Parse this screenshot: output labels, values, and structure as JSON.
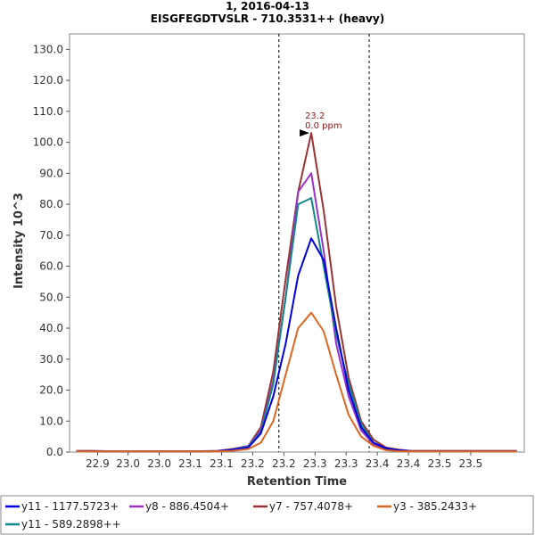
{
  "chart_data": {
    "type": "line",
    "title": "1, 2016-04-13",
    "subtitle": "EISGFEGDTVSLR - 710.3531++ (heavy)",
    "xlabel": "Retention Time",
    "ylabel": "Intensity 10^3",
    "xlim": [
      22.83,
      23.56
    ],
    "ylim": [
      0,
      135
    ],
    "x_ticks": [
      "22.9",
      "23.0",
      "23.0",
      "23.1",
      "23.1",
      "23.2",
      "23.2",
      "23.3",
      "23.3",
      "23.4",
      "23.4",
      "23.5",
      "23.5"
    ],
    "x_tick_values": [
      22.875,
      22.924,
      22.974,
      23.024,
      23.074,
      23.124,
      23.174,
      23.224,
      23.274,
      23.324,
      23.374,
      23.424,
      23.474
    ],
    "y_ticks": [
      "0.0",
      "10.0",
      "20.0",
      "30.0",
      "40.0",
      "50.0",
      "60.0",
      "70.0",
      "80.0",
      "90.0",
      "100.0",
      "110.0",
      "120.0",
      "130.0"
    ],
    "y_tick_values": [
      0,
      10,
      20,
      30,
      40,
      50,
      60,
      70,
      80,
      90,
      100,
      110,
      120,
      130
    ],
    "boundaries": [
      23.166,
      23.311
    ],
    "annotation": {
      "x": 23.218,
      "y": 103,
      "lines": [
        "23.2",
        "0.0 ppm"
      ],
      "color": "#8b1a1a"
    },
    "x": [
      22.841,
      22.866,
      22.891,
      22.917,
      22.942,
      22.967,
      22.992,
      23.017,
      23.042,
      23.067,
      23.092,
      23.117,
      23.137,
      23.157,
      23.177,
      23.197,
      23.218,
      23.238,
      23.258,
      23.278,
      23.298,
      23.318,
      23.338,
      23.358,
      23.378,
      23.398,
      23.423,
      23.448,
      23.473,
      23.498,
      23.523,
      23.548
    ],
    "series": [
      {
        "name": "y11 - 1177.5723+",
        "color": "#0000dd",
        "values": [
          0.3,
          0.3,
          0.2,
          0.2,
          0.2,
          0.2,
          0.2,
          0.2,
          0.2,
          0.3,
          0.8,
          1.5,
          6,
          18,
          35,
          57,
          69,
          62,
          40,
          20,
          8,
          3,
          1.2,
          0.6,
          0.3,
          0.3,
          0.3,
          0.3,
          0.3,
          0.3,
          0.3,
          0.3
        ]
      },
      {
        "name": "y8 - 886.4504+",
        "color": "#9933cc",
        "values": [
          0.3,
          0.3,
          0.2,
          0.2,
          0.2,
          0.2,
          0.2,
          0.2,
          0.2,
          0.3,
          0.9,
          2,
          7,
          23,
          50,
          84,
          90,
          65,
          35,
          18,
          7,
          2.5,
          1,
          0.5,
          0.3,
          0.3,
          0.3,
          0.3,
          0.3,
          0.3,
          0.3,
          0.3
        ]
      },
      {
        "name": "y7 - 757.4078+",
        "color": "#993333",
        "values": [
          0.4,
          0.4,
          0.3,
          0.3,
          0.3,
          0.3,
          0.3,
          0.3,
          0.3,
          0.4,
          1,
          2,
          8,
          26,
          56,
          84,
          103,
          78,
          47,
          24,
          10,
          4,
          1.5,
          0.8,
          0.4,
          0.4,
          0.4,
          0.4,
          0.4,
          0.4,
          0.4,
          0.4
        ]
      },
      {
        "name": "y3 - 385.2433+",
        "color": "#dd6622",
        "values": [
          0.2,
          0.2,
          0.2,
          0.2,
          0.2,
          0.2,
          0.2,
          0.2,
          0.2,
          0.2,
          0.4,
          1,
          3,
          10,
          25,
          40,
          45,
          39,
          25,
          12,
          5,
          2,
          0.6,
          0.3,
          0.2,
          0.2,
          0.2,
          0.2,
          0.2,
          0.2,
          0.2,
          0.2
        ]
      },
      {
        "name": "y11 - 589.2898++",
        "color": "#118888",
        "values": [
          0.3,
          0.3,
          0.2,
          0.2,
          0.2,
          0.2,
          0.2,
          0.2,
          0.2,
          0.3,
          0.8,
          1.8,
          6.5,
          22,
          50,
          80,
          82,
          60,
          38,
          22,
          9,
          3,
          1.2,
          0.6,
          0.3,
          0.3,
          0.3,
          0.3,
          0.3,
          0.3,
          0.3,
          0.3
        ]
      }
    ],
    "legend_position": "bottom",
    "grid": false
  }
}
